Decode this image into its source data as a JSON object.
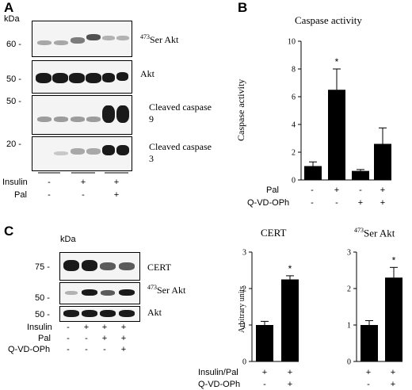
{
  "panels": {
    "a": "A",
    "b": "B",
    "c": "C"
  },
  "a": {
    "kda_label": "kDa",
    "blots": [
      {
        "marker": "60 -",
        "label_sup": "473",
        "label": "Ser Akt"
      },
      {
        "marker": "50 -",
        "label_sup": "",
        "label": "Akt"
      },
      {
        "marker": "50 -",
        "label_sup": "",
        "label": "Cleaved caspase 9"
      },
      {
        "marker": "20 -",
        "label_sup": "",
        "label": "Cleaved caspase 3"
      }
    ],
    "conditions": [
      {
        "name": "Insulin",
        "values": [
          "-",
          "+",
          "+"
        ]
      },
      {
        "name": "Pal",
        "values": [
          "-",
          "-",
          "+"
        ]
      }
    ]
  },
  "c_blot": {
    "kda_label": "kDa",
    "blots": [
      {
        "marker": "75 -",
        "label_sup": "",
        "label": "CERT"
      },
      {
        "marker": "50 -",
        "label_sup": "473",
        "label": "Ser Akt"
      },
      {
        "marker": "50 -",
        "label_sup": "",
        "label": "Akt"
      }
    ],
    "conditions": [
      {
        "name": "Insulin",
        "values": [
          "-",
          "+",
          "+",
          "+"
        ]
      },
      {
        "name": "Pal",
        "values": [
          "-",
          "-",
          "+",
          "+"
        ]
      },
      {
        "name": "Q-VD-OPh",
        "values": [
          "-",
          "-",
          "-",
          "+"
        ]
      }
    ]
  },
  "chart_data": [
    {
      "type": "bar",
      "title": "Caspase activity",
      "ylabel": "Caspase activity",
      "ylim": [
        0,
        10
      ],
      "yticks": [
        "0",
        "2",
        "4",
        "6",
        "8",
        "10"
      ],
      "categories": [
        "-/-",
        "+/-",
        "-/+",
        "+/+"
      ],
      "values": [
        1.0,
        6.5,
        0.65,
        2.6
      ],
      "errors": [
        0.3,
        1.5,
        0.1,
        1.15
      ],
      "significance": [
        "",
        "*",
        "",
        ""
      ],
      "conditions": [
        {
          "name": "Pal",
          "values": [
            "-",
            "+",
            "-",
            "+"
          ]
        },
        {
          "name": "Q-VD-OPh",
          "values": [
            "-",
            "-",
            "+",
            "+"
          ]
        }
      ]
    },
    {
      "type": "bar",
      "title": "CERT",
      "ylabel": "Arbitrary units",
      "ylim": [
        0,
        3
      ],
      "yticks": [
        "0",
        "1",
        "2",
        "3"
      ],
      "categories": [
        "+/-",
        "+/+"
      ],
      "values": [
        1.0,
        2.25
      ],
      "errors": [
        0.1,
        0.1
      ],
      "significance": [
        "",
        "*"
      ],
      "conditions": [
        {
          "name": "Insulin/Pal",
          "values": [
            "+",
            "+"
          ]
        },
        {
          "name": "Q-VD-OPh",
          "values": [
            "-",
            "+"
          ]
        }
      ]
    },
    {
      "type": "bar",
      "title_sup": "473",
      "title": "Ser Akt",
      "ylabel": "",
      "ylim": [
        0,
        3
      ],
      "yticks": [
        "0",
        "1",
        "2",
        "3"
      ],
      "categories": [
        "+/-",
        "+/+"
      ],
      "values": [
        1.0,
        2.3
      ],
      "errors": [
        0.12,
        0.28
      ],
      "significance": [
        "",
        "*"
      ],
      "conditions": [
        {
          "name": "",
          "values": [
            "+",
            "+"
          ]
        },
        {
          "name": "",
          "values": [
            "-",
            "+"
          ]
        }
      ]
    }
  ]
}
